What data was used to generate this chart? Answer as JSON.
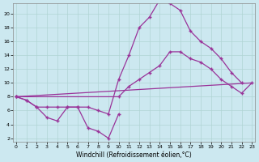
{
  "bg_color": "#cce8f0",
  "grid_color": "#b0d4d4",
  "line_color": "#993399",
  "xlabel": "Windchill (Refroidissement éolien,°C)",
  "xlim": [
    -0.3,
    23.3
  ],
  "ylim": [
    1.5,
    21.5
  ],
  "xticks": [
    0,
    1,
    2,
    3,
    4,
    5,
    6,
    7,
    8,
    9,
    10,
    11,
    12,
    13,
    14,
    15,
    16,
    17,
    18,
    19,
    20,
    21,
    22,
    23
  ],
  "yticks": [
    2,
    4,
    6,
    8,
    10,
    12,
    14,
    16,
    18,
    20
  ],
  "curve1_x": [
    0,
    1,
    2,
    3,
    4,
    5,
    6,
    7,
    8,
    9,
    10,
    11,
    12,
    13,
    14,
    15,
    16,
    17,
    18,
    19,
    20,
    21,
    22
  ],
  "curve1_y": [
    8.0,
    7.5,
    6.5,
    6.5,
    6.5,
    6.5,
    6.5,
    6.5,
    6.0,
    5.5,
    10.5,
    14.0,
    18.0,
    19.5,
    22.0,
    21.5,
    20.5,
    17.5,
    16.0,
    15.0,
    13.5,
    11.5,
    10.0
  ],
  "curve2_x": [
    0,
    1,
    2,
    3,
    4,
    5,
    6,
    7,
    8,
    9,
    10
  ],
  "curve2_y": [
    8.0,
    7.5,
    6.5,
    5.0,
    4.5,
    6.5,
    6.5,
    3.5,
    3.0,
    2.0,
    5.5
  ],
  "curve3_x": [
    0,
    10,
    11,
    12,
    13,
    14,
    15,
    16,
    17,
    18,
    19,
    20,
    21,
    22,
    23
  ],
  "curve3_y": [
    8.0,
    8.0,
    9.5,
    10.5,
    11.5,
    12.5,
    14.5,
    14.5,
    13.5,
    13.0,
    12.0,
    10.5,
    9.5,
    8.5,
    10.0
  ],
  "curve4_x": [
    0,
    23
  ],
  "curve4_y": [
    8.0,
    10.0
  ]
}
